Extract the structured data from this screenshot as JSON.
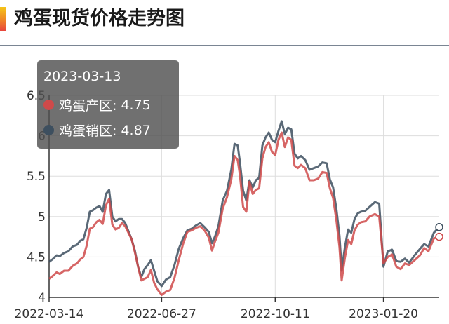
{
  "title": "鸡蛋现货价格走势图",
  "colors": {
    "producer": "#cf4a4a",
    "seller": "#3d4f5f",
    "axis": "#333333",
    "grid": "#dddddd"
  },
  "tooltip": {
    "date": "2023-03-13",
    "rows": [
      {
        "name": "鸡蛋产区",
        "value": "4.75",
        "color": "#cf4a4a"
      },
      {
        "name": "鸡蛋销区",
        "value": "4.87",
        "color": "#3d4f5f"
      }
    ]
  },
  "chart_data": {
    "type": "line",
    "x_ticks": [
      "2022-03-14",
      "2022-06-27",
      "2022-10-11",
      "2023-01-20"
    ],
    "y_ticks": [
      4,
      4.5,
      5,
      5.5,
      6,
      6.5
    ],
    "ylim": [
      4,
      6.5
    ],
    "xlim": [
      "2022-03-14",
      "2023-03-13"
    ],
    "grid": true,
    "series": [
      {
        "name": "鸡蛋产区",
        "color": "#cf4a4a",
        "points": [
          [
            "2022-03-14",
            4.23
          ],
          [
            "2022-03-17",
            4.26
          ],
          [
            "2022-03-21",
            4.31
          ],
          [
            "2022-03-24",
            4.29
          ],
          [
            "2022-03-28",
            4.33
          ],
          [
            "2022-04-01",
            4.33
          ],
          [
            "2022-04-05",
            4.39
          ],
          [
            "2022-04-09",
            4.42
          ],
          [
            "2022-04-12",
            4.47
          ],
          [
            "2022-04-15",
            4.5
          ],
          [
            "2022-04-18",
            4.64
          ],
          [
            "2022-04-21",
            4.85
          ],
          [
            "2022-04-24",
            4.87
          ],
          [
            "2022-04-27",
            4.93
          ],
          [
            "2022-04-30",
            4.96
          ],
          [
            "2022-05-03",
            4.91
          ],
          [
            "2022-05-06",
            5.14
          ],
          [
            "2022-05-09",
            5.22
          ],
          [
            "2022-05-12",
            4.9
          ],
          [
            "2022-05-15",
            4.84
          ],
          [
            "2022-05-18",
            4.86
          ],
          [
            "2022-05-21",
            4.92
          ],
          [
            "2022-05-24",
            4.88
          ],
          [
            "2022-05-27",
            4.8
          ],
          [
            "2022-05-30",
            4.72
          ],
          [
            "2022-06-02",
            4.56
          ],
          [
            "2022-06-05",
            4.38
          ],
          [
            "2022-06-08",
            4.21
          ],
          [
            "2022-06-11",
            4.23
          ],
          [
            "2022-06-14",
            4.25
          ],
          [
            "2022-06-17",
            4.34
          ],
          [
            "2022-06-20",
            4.18
          ],
          [
            "2022-06-23",
            4.1
          ],
          [
            "2022-06-27",
            4.03
          ],
          [
            "2022-07-01",
            4.07
          ],
          [
            "2022-07-05",
            4.09
          ],
          [
            "2022-07-09",
            4.24
          ],
          [
            "2022-07-13",
            4.46
          ],
          [
            "2022-07-17",
            4.66
          ],
          [
            "2022-07-21",
            4.81
          ],
          [
            "2022-07-25",
            4.83
          ],
          [
            "2022-07-29",
            4.86
          ],
          [
            "2022-08-02",
            4.88
          ],
          [
            "2022-08-06",
            4.83
          ],
          [
            "2022-08-10",
            4.74
          ],
          [
            "2022-08-13",
            4.58
          ],
          [
            "2022-08-16",
            4.7
          ],
          [
            "2022-08-19",
            4.8
          ],
          [
            "2022-08-23",
            5.1
          ],
          [
            "2022-08-27",
            5.24
          ],
          [
            "2022-08-31",
            5.46
          ],
          [
            "2022-09-03",
            5.75
          ],
          [
            "2022-09-06",
            5.7
          ],
          [
            "2022-09-08",
            5.52
          ],
          [
            "2022-09-11",
            5.12
          ],
          [
            "2022-09-14",
            5.06
          ],
          [
            "2022-09-17",
            5.43
          ],
          [
            "2022-09-20",
            5.28
          ],
          [
            "2022-09-23",
            5.33
          ],
          [
            "2022-09-26",
            5.35
          ],
          [
            "2022-09-29",
            5.72
          ],
          [
            "2022-10-02",
            5.86
          ],
          [
            "2022-10-05",
            5.92
          ],
          [
            "2022-10-08",
            5.8
          ],
          [
            "2022-10-11",
            5.76
          ],
          [
            "2022-10-14",
            5.95
          ],
          [
            "2022-10-17",
            6.04
          ],
          [
            "2022-10-20",
            5.86
          ],
          [
            "2022-10-23",
            5.98
          ],
          [
            "2022-10-26",
            5.95
          ],
          [
            "2022-10-29",
            5.63
          ],
          [
            "2022-11-01",
            5.6
          ],
          [
            "2022-11-04",
            5.64
          ],
          [
            "2022-11-08",
            5.6
          ],
          [
            "2022-11-12",
            5.45
          ],
          [
            "2022-11-16",
            5.45
          ],
          [
            "2022-11-20",
            5.47
          ],
          [
            "2022-11-24",
            5.55
          ],
          [
            "2022-11-28",
            5.54
          ],
          [
            "2022-12-01",
            5.35
          ],
          [
            "2022-12-04",
            5.23
          ],
          [
            "2022-12-07",
            4.96
          ],
          [
            "2022-12-10",
            4.62
          ],
          [
            "2022-12-12",
            4.21
          ],
          [
            "2022-12-15",
            4.49
          ],
          [
            "2022-12-18",
            4.71
          ],
          [
            "2022-12-21",
            4.66
          ],
          [
            "2022-12-24",
            4.83
          ],
          [
            "2022-12-27",
            4.9
          ],
          [
            "2022-12-30",
            4.93
          ],
          [
            "2023-01-03",
            4.94
          ],
          [
            "2023-01-07",
            5.0
          ],
          [
            "2023-01-12",
            5.03
          ],
          [
            "2023-01-16",
            5.0
          ],
          [
            "2023-01-20",
            4.42
          ],
          [
            "2023-01-24",
            4.5
          ],
          [
            "2023-01-28",
            4.53
          ],
          [
            "2023-02-01",
            4.38
          ],
          [
            "2023-02-05",
            4.35
          ],
          [
            "2023-02-09",
            4.42
          ],
          [
            "2023-02-13",
            4.4
          ],
          [
            "2023-02-18",
            4.46
          ],
          [
            "2023-02-23",
            4.52
          ],
          [
            "2023-02-27",
            4.61
          ],
          [
            "2023-03-03",
            4.57
          ],
          [
            "2023-03-08",
            4.73
          ],
          [
            "2023-03-13",
            4.75
          ]
        ]
      },
      {
        "name": "鸡蛋销区",
        "color": "#3d4f5f",
        "points": [
          [
            "2022-03-14",
            4.44
          ],
          [
            "2022-03-17",
            4.47
          ],
          [
            "2022-03-21",
            4.52
          ],
          [
            "2022-03-24",
            4.51
          ],
          [
            "2022-03-28",
            4.55
          ],
          [
            "2022-04-01",
            4.57
          ],
          [
            "2022-04-05",
            4.63
          ],
          [
            "2022-04-09",
            4.65
          ],
          [
            "2022-04-12",
            4.7
          ],
          [
            "2022-04-15",
            4.72
          ],
          [
            "2022-04-18",
            4.86
          ],
          [
            "2022-04-21",
            5.06
          ],
          [
            "2022-04-24",
            5.08
          ],
          [
            "2022-04-27",
            5.11
          ],
          [
            "2022-04-30",
            5.13
          ],
          [
            "2022-05-03",
            5.06
          ],
          [
            "2022-05-06",
            5.28
          ],
          [
            "2022-05-09",
            5.33
          ],
          [
            "2022-05-12",
            5.0
          ],
          [
            "2022-05-15",
            4.94
          ],
          [
            "2022-05-18",
            4.97
          ],
          [
            "2022-05-21",
            4.97
          ],
          [
            "2022-05-24",
            4.92
          ],
          [
            "2022-05-27",
            4.82
          ],
          [
            "2022-05-30",
            4.72
          ],
          [
            "2022-06-02",
            4.58
          ],
          [
            "2022-06-05",
            4.38
          ],
          [
            "2022-06-08",
            4.25
          ],
          [
            "2022-06-11",
            4.35
          ],
          [
            "2022-06-14",
            4.4
          ],
          [
            "2022-06-17",
            4.46
          ],
          [
            "2022-06-20",
            4.33
          ],
          [
            "2022-06-23",
            4.2
          ],
          [
            "2022-06-27",
            4.14
          ],
          [
            "2022-07-01",
            4.22
          ],
          [
            "2022-07-05",
            4.25
          ],
          [
            "2022-07-09",
            4.4
          ],
          [
            "2022-07-13",
            4.6
          ],
          [
            "2022-07-17",
            4.73
          ],
          [
            "2022-07-21",
            4.83
          ],
          [
            "2022-07-25",
            4.85
          ],
          [
            "2022-07-29",
            4.89
          ],
          [
            "2022-08-02",
            4.92
          ],
          [
            "2022-08-06",
            4.87
          ],
          [
            "2022-08-10",
            4.81
          ],
          [
            "2022-08-13",
            4.67
          ],
          [
            "2022-08-16",
            4.76
          ],
          [
            "2022-08-19",
            4.88
          ],
          [
            "2022-08-23",
            5.2
          ],
          [
            "2022-08-27",
            5.32
          ],
          [
            "2022-08-31",
            5.58
          ],
          [
            "2022-09-03",
            5.9
          ],
          [
            "2022-09-06",
            5.88
          ],
          [
            "2022-09-08",
            5.68
          ],
          [
            "2022-09-11",
            5.32
          ],
          [
            "2022-09-14",
            5.2
          ],
          [
            "2022-09-17",
            5.45
          ],
          [
            "2022-09-20",
            5.36
          ],
          [
            "2022-09-23",
            5.45
          ],
          [
            "2022-09-26",
            5.48
          ],
          [
            "2022-09-29",
            5.88
          ],
          [
            "2022-10-02",
            5.98
          ],
          [
            "2022-10-05",
            6.04
          ],
          [
            "2022-10-08",
            5.95
          ],
          [
            "2022-10-11",
            5.92
          ],
          [
            "2022-10-14",
            6.06
          ],
          [
            "2022-10-17",
            6.18
          ],
          [
            "2022-10-20",
            6.02
          ],
          [
            "2022-10-23",
            6.1
          ],
          [
            "2022-10-26",
            6.08
          ],
          [
            "2022-10-29",
            5.78
          ],
          [
            "2022-11-01",
            5.72
          ],
          [
            "2022-11-04",
            5.75
          ],
          [
            "2022-11-08",
            5.7
          ],
          [
            "2022-11-12",
            5.58
          ],
          [
            "2022-11-16",
            5.6
          ],
          [
            "2022-11-20",
            5.62
          ],
          [
            "2022-11-24",
            5.67
          ],
          [
            "2022-11-28",
            5.66
          ],
          [
            "2022-12-01",
            5.46
          ],
          [
            "2022-12-04",
            5.36
          ],
          [
            "2022-12-07",
            5.1
          ],
          [
            "2022-12-10",
            4.76
          ],
          [
            "2022-12-12",
            4.33
          ],
          [
            "2022-12-15",
            4.62
          ],
          [
            "2022-12-18",
            4.84
          ],
          [
            "2022-12-21",
            4.8
          ],
          [
            "2022-12-24",
            4.97
          ],
          [
            "2022-12-27",
            5.04
          ],
          [
            "2022-12-30",
            5.06
          ],
          [
            "2023-01-03",
            5.07
          ],
          [
            "2023-01-07",
            5.12
          ],
          [
            "2023-01-12",
            5.18
          ],
          [
            "2023-01-16",
            5.16
          ],
          [
            "2023-01-20",
            4.38
          ],
          [
            "2023-01-24",
            4.57
          ],
          [
            "2023-01-28",
            4.59
          ],
          [
            "2023-02-01",
            4.45
          ],
          [
            "2023-02-05",
            4.44
          ],
          [
            "2023-02-09",
            4.48
          ],
          [
            "2023-02-13",
            4.43
          ],
          [
            "2023-02-18",
            4.52
          ],
          [
            "2023-02-23",
            4.6
          ],
          [
            "2023-02-27",
            4.66
          ],
          [
            "2023-03-03",
            4.63
          ],
          [
            "2023-03-08",
            4.8
          ],
          [
            "2023-03-13",
            4.87
          ]
        ]
      }
    ]
  }
}
